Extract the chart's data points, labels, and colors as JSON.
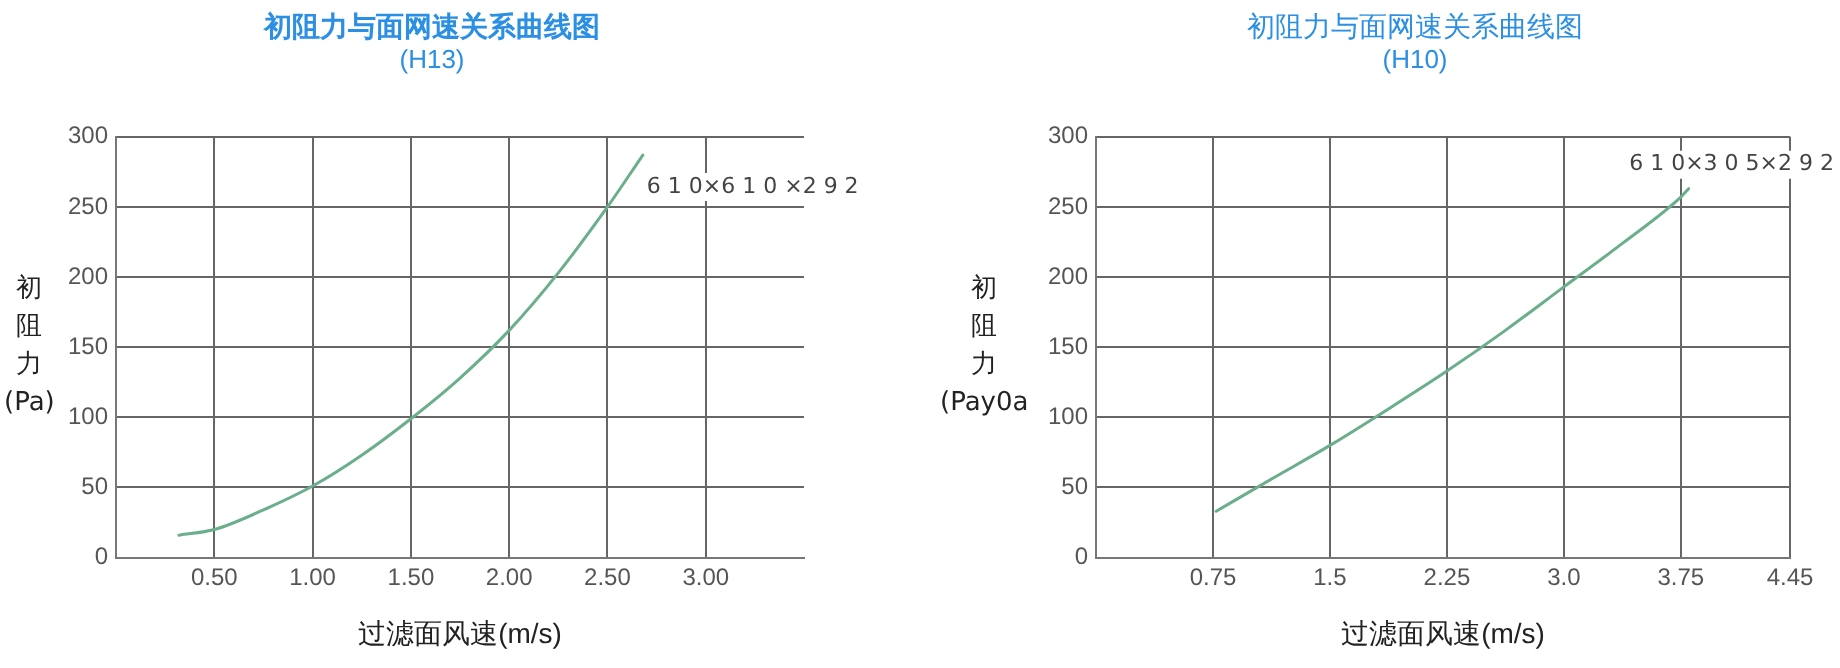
{
  "chart_data": [
    {
      "type": "line",
      "title": "初阻力与面网速关系曲线图",
      "subtitle": "(H13)",
      "xlabel": "过滤面风速(m/s)",
      "ylabel": "初阻力(Pa)",
      "annotations": [
        "6 1 0×6 1 0 ×2 9 2"
      ],
      "series": [
        {
          "color": "#6aae8c",
          "x": [
            0.32,
            0.5,
            0.75,
            1.0,
            1.25,
            1.5,
            1.75,
            2.0,
            2.25,
            2.5,
            2.68
          ],
          "values": [
            16,
            20,
            34,
            51,
            73,
            99,
            128,
            162,
            203,
            250,
            287
          ]
        }
      ],
      "xlim": [
        0,
        3.5
      ],
      "xticks": [
        {
          "value": 0.5,
          "label": "0.50"
        },
        {
          "value": 1,
          "label": "1.00"
        },
        {
          "value": 1.5,
          "label": "1.50"
        },
        {
          "value": 2,
          "label": "2.00"
        },
        {
          "value": 2.5,
          "label": "2.50"
        },
        {
          "value": 3,
          "label": "3.00"
        }
      ],
      "ylim": [
        0,
        300
      ],
      "yticks": [
        0,
        50,
        100,
        150,
        200,
        250,
        300
      ],
      "grid": true,
      "legend": false,
      "marker": "none",
      "line_style": "solid"
    },
    {
      "type": "line",
      "title": "初阻力与面网速关系曲线图",
      "subtitle": "(H10)",
      "xlabel": "过滤面风速(m/s)",
      "ylabel": "初阻力(Pay0a",
      "annotations": [
        "6 1 0×3 0 5×2 9 2"
      ],
      "series": [
        {
          "color": "#6aae8c",
          "x": [
            0.77,
            1.125,
            1.5,
            1.875,
            2.25,
            2.625,
            3.0,
            3.375,
            3.75,
            3.8
          ],
          "values": [
            33,
            56,
            80,
            106,
            133,
            162,
            193,
            224,
            257,
            263
          ]
        }
      ],
      "xlim": [
        0,
        4.45
      ],
      "xticks": [
        0.75,
        1.5,
        2.25,
        {
          "value": 3,
          "label": "3.0"
        },
        3.75,
        4.45
      ],
      "ylim": [
        0,
        300
      ],
      "yticks": [
        0,
        50,
        100,
        150,
        200,
        250,
        300
      ],
      "grid": true,
      "legend": false,
      "marker": "none",
      "line_style": "solid"
    }
  ]
}
